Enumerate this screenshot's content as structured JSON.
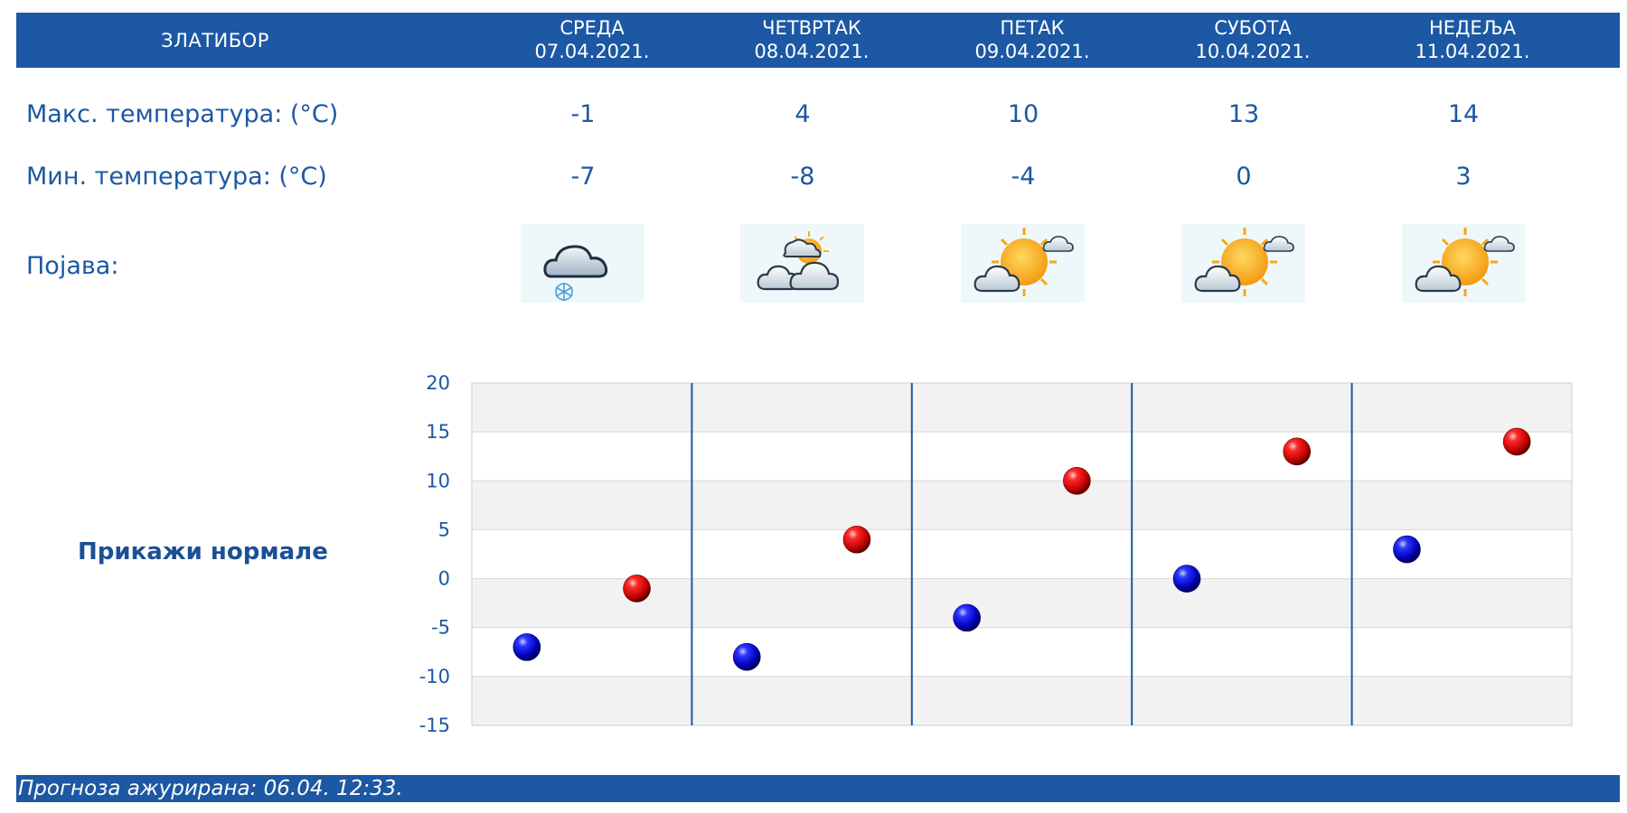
{
  "location": "ЗЛАТИБОР",
  "days": [
    {
      "name": "СРЕДА",
      "date": "07.04.2021.",
      "max": "-1",
      "min": "-7",
      "icon": "snow-cloud-icon"
    },
    {
      "name": "ЧЕТВРТАК",
      "date": "08.04.2021.",
      "max": "4",
      "min": "-8",
      "icon": "partly-cloudy-icon"
    },
    {
      "name": "ПЕТАК",
      "date": "09.04.2021.",
      "max": "10",
      "min": "-4",
      "icon": "mostly-sunny-icon"
    },
    {
      "name": "СУБОТА",
      "date": "10.04.2021.",
      "max": "13",
      "min": "0",
      "icon": "mostly-sunny-icon"
    },
    {
      "name": "НЕДЕЉА",
      "date": "11.04.2021.",
      "max": "14",
      "min": "3",
      "icon": "mostly-sunny-icon"
    }
  ],
  "labels": {
    "max_temp": "Макс. температура: (°C)",
    "min_temp": "Мин. температура: (°C)",
    "phenomenon": "Појава:"
  },
  "show_normals": "Прикажи нормале",
  "footer": "Прогноза ажурирана:  06.04. 12:33.",
  "colors": {
    "brand_blue": "#1c58a3",
    "max_marker": "#d40000",
    "min_marker": "#0a14c8",
    "icon_bg": "#eef8fb"
  },
  "chart_data": {
    "type": "scatter",
    "ylim": [
      -15,
      20
    ],
    "yticks": [
      20,
      15,
      10,
      5,
      0,
      -5,
      -10,
      -15
    ],
    "tick_labels": [
      "20",
      "15",
      "10",
      "5",
      "0",
      "-5",
      "-10",
      "-15"
    ],
    "grid": true,
    "series": [
      {
        "values": [
          -7,
          -8,
          -4,
          0,
          3
        ]
      },
      {
        "values": [
          -1,
          4,
          10,
          13,
          14
        ]
      }
    ]
  }
}
